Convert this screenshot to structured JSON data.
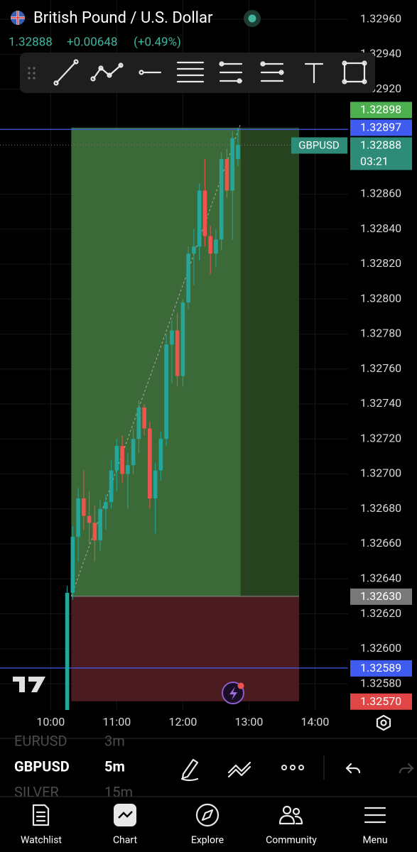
{
  "header": {
    "title": "British Pound / U.S. Dollar",
    "price": "1.32888",
    "change": "+0.00648",
    "change_pct": "(+0.49%)"
  },
  "chart": {
    "type": "candlestick",
    "candles": [
      {
        "time": "10:15",
        "open": 1.32565,
        "high": 1.32636,
        "low": 1.32555,
        "close": 1.32632
      },
      {
        "time": "10:20",
        "open": 1.32632,
        "high": 1.3267,
        "low": 1.32628,
        "close": 1.32664
      },
      {
        "time": "10:25",
        "open": 1.32664,
        "high": 1.32692,
        "low": 1.3265,
        "close": 1.32686
      },
      {
        "time": "10:30",
        "open": 1.32686,
        "high": 1.32702,
        "low": 1.32668,
        "close": 1.32676
      },
      {
        "time": "10:35",
        "open": 1.32676,
        "high": 1.3269,
        "low": 1.3266,
        "close": 1.32672
      },
      {
        "time": "10:40",
        "open": 1.32672,
        "high": 1.32682,
        "low": 1.3265,
        "close": 1.32662
      },
      {
        "time": "10:45",
        "open": 1.32662,
        "high": 1.32685,
        "low": 1.32656,
        "close": 1.3268
      },
      {
        "time": "10:50",
        "open": 1.3268,
        "high": 1.32688,
        "low": 1.32668,
        "close": 1.32684
      },
      {
        "time": "10:55",
        "open": 1.32684,
        "high": 1.32708,
        "low": 1.3268,
        "close": 1.32702
      },
      {
        "time": "11:00",
        "open": 1.32702,
        "high": 1.3272,
        "low": 1.3269,
        "close": 1.32716
      },
      {
        "time": "11:05",
        "open": 1.32716,
        "high": 1.32722,
        "low": 1.32695,
        "close": 1.327
      },
      {
        "time": "11:10",
        "open": 1.327,
        "high": 1.32712,
        "low": 1.3268,
        "close": 1.32705
      },
      {
        "time": "11:15",
        "open": 1.32705,
        "high": 1.32726,
        "low": 1.327,
        "close": 1.3272
      },
      {
        "time": "11:20",
        "open": 1.3272,
        "high": 1.32742,
        "low": 1.32712,
        "close": 1.32738
      },
      {
        "time": "11:25",
        "open": 1.32738,
        "high": 1.3274,
        "low": 1.32722,
        "close": 1.32726
      },
      {
        "time": "11:30",
        "open": 1.32726,
        "high": 1.3273,
        "low": 1.3268,
        "close": 1.32686
      },
      {
        "time": "11:35",
        "open": 1.32686,
        "high": 1.32706,
        "low": 1.32666,
        "close": 1.32702
      },
      {
        "time": "11:40",
        "open": 1.32702,
        "high": 1.32724,
        "low": 1.32696,
        "close": 1.3272
      },
      {
        "time": "11:45",
        "open": 1.3272,
        "high": 1.3278,
        "low": 1.32716,
        "close": 1.32774
      },
      {
        "time": "11:50",
        "open": 1.32774,
        "high": 1.32788,
        "low": 1.32752,
        "close": 1.32782
      },
      {
        "time": "11:55",
        "open": 1.32782,
        "high": 1.32792,
        "low": 1.3275,
        "close": 1.32756
      },
      {
        "time": "12:00",
        "open": 1.32756,
        "high": 1.328,
        "low": 1.3275,
        "close": 1.32798
      },
      {
        "time": "12:05",
        "open": 1.32798,
        "high": 1.3283,
        "low": 1.32794,
        "close": 1.32826
      },
      {
        "time": "12:10",
        "open": 1.32826,
        "high": 1.3284,
        "low": 1.32808,
        "close": 1.3283
      },
      {
        "time": "12:15",
        "open": 1.3283,
        "high": 1.32866,
        "low": 1.32822,
        "close": 1.32862
      },
      {
        "time": "12:20",
        "open": 1.32862,
        "high": 1.3288,
        "low": 1.3283,
        "close": 1.32836
      },
      {
        "time": "12:25",
        "open": 1.32836,
        "high": 1.32842,
        "low": 1.32814,
        "close": 1.32826
      },
      {
        "time": "12:30",
        "open": 1.32826,
        "high": 1.3284,
        "low": 1.32818,
        "close": 1.32834
      },
      {
        "time": "12:35",
        "open": 1.32834,
        "high": 1.32884,
        "low": 1.32828,
        "close": 1.3288
      },
      {
        "time": "12:40",
        "open": 1.3288,
        "high": 1.32886,
        "low": 1.32858,
        "close": 1.32862
      },
      {
        "time": "12:45",
        "open": 1.32862,
        "high": 1.32896,
        "low": 1.32834,
        "close": 1.32892
      },
      {
        "time": "12:50",
        "open": 1.3288,
        "high": 1.32898,
        "low": 1.32876,
        "close": 1.32888
      }
    ],
    "up_color": "#26a69a",
    "down_color": "#ef5350",
    "xlim": [
      "09:14",
      "14:30"
    ],
    "xticks": [
      "10:00",
      "11:00",
      "12:00",
      "13:00",
      "14:00"
    ],
    "ylim": [
      1.32565,
      1.32971
    ],
    "yticks": [
      {
        "value": 1.3296,
        "label": "1.32960"
      },
      {
        "value": 1.3294,
        "label": "1.32940"
      },
      {
        "value": 1.3292,
        "label": "1.32920"
      },
      {
        "value": 1.3286,
        "label": "1.32860"
      },
      {
        "value": 1.3284,
        "label": "1.32840"
      },
      {
        "value": 1.3282,
        "label": "1.32820"
      },
      {
        "value": 1.328,
        "label": "1.32800"
      },
      {
        "value": 1.3278,
        "label": "1.32780"
      },
      {
        "value": 1.3276,
        "label": "1.32760"
      },
      {
        "value": 1.3274,
        "label": "1.32740"
      },
      {
        "value": 1.3272,
        "label": "1.32720"
      },
      {
        "value": 1.327,
        "label": "1.32700"
      },
      {
        "value": 1.3268,
        "label": "1.32680"
      },
      {
        "value": 1.3266,
        "label": "1.32660"
      },
      {
        "value": 1.3264,
        "label": "1.32640"
      },
      {
        "value": 1.3262,
        "label": "1.32620"
      },
      {
        "value": 1.326,
        "label": "1.32600"
      },
      {
        "value": 1.3258,
        "label": "1.32580"
      }
    ],
    "last_price": {
      "value": 1.32888,
      "label": "1.32888",
      "symbol": "GBPUSD",
      "countdown": "03:21",
      "color": "#2e8b78"
    },
    "lines": [
      {
        "value": 1.32897,
        "label": "1.32897",
        "color": "#3f5bf0"
      },
      {
        "value": 1.32589,
        "label": "1.32589",
        "color": "#3f5bf0"
      }
    ],
    "position": {
      "target": {
        "value": 1.32898,
        "label": "1.32898",
        "color": "#4caf50"
      },
      "entry": {
        "value": 1.3263,
        "label": "1.32630",
        "color": "#787878"
      },
      "stop": {
        "value": 1.3257,
        "label": "1.32570",
        "color": "#e04646"
      }
    }
  },
  "watchlist": [
    {
      "symbol": "EURUSD",
      "interval": "3m"
    },
    {
      "symbol": "GBPUSD",
      "interval": "5m"
    },
    {
      "symbol": "SILVER",
      "interval": "15m"
    }
  ],
  "nav": [
    "Watchlist",
    "Chart",
    "Explore",
    "Community",
    "Menu"
  ]
}
